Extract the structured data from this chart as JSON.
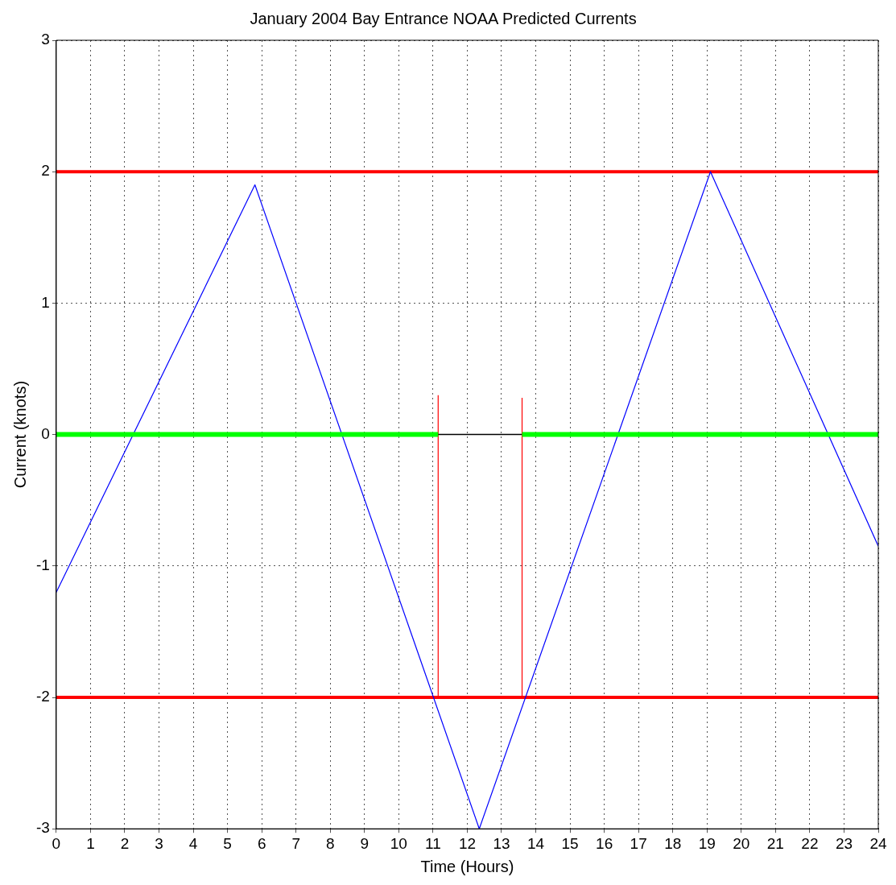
{
  "chart_data": {
    "type": "line",
    "title": "January 2004 Bay Entrance NOAA Predicted Currents",
    "xlabel": "Time (Hours)",
    "ylabel": "Current (knots)",
    "series": [
      {
        "color": "#00ff00",
        "x": [
          0,
          11.15,
          12.4,
          13.6,
          24
        ],
        "values": [
          0,
          0,
          null,
          0,
          0
        ]
      },
      {
        "color": "#000000",
        "x": [
          11.15,
          13.6
        ],
        "values": [
          0,
          0
        ]
      },
      {
        "color": "#ff0000",
        "x": [
          11.15,
          11.15
        ],
        "values": [
          -2,
          0.3
        ]
      },
      {
        "color": "#ff0000",
        "x": [
          13.6,
          13.6
        ],
        "values": [
          -2,
          0.28
        ]
      },
      {
        "color": "#0000ff",
        "x": [
          0,
          5.8,
          12.35,
          19.1,
          24
        ],
        "values": [
          -1.2,
          1.9,
          -3,
          2,
          -0.85
        ]
      }
    ],
    "ref_lines": [
      {
        "axis": "y",
        "value": 2,
        "color": "#ff0000"
      },
      {
        "axis": "y",
        "value": -2,
        "color": "#ff0000"
      }
    ],
    "xlim": [
      0,
      24
    ],
    "xticks": [
      0,
      1,
      2,
      3,
      4,
      5,
      6,
      7,
      8,
      9,
      10,
      11,
      12,
      13,
      14,
      15,
      16,
      17,
      18,
      19,
      20,
      21,
      22,
      23,
      24
    ],
    "ylim": [
      -3,
      3
    ],
    "yticks": [
      -3,
      -2,
      -1,
      0,
      1,
      2,
      3
    ],
    "grid": true,
    "line_style": "solid",
    "marker": "none",
    "legend": false
  }
}
